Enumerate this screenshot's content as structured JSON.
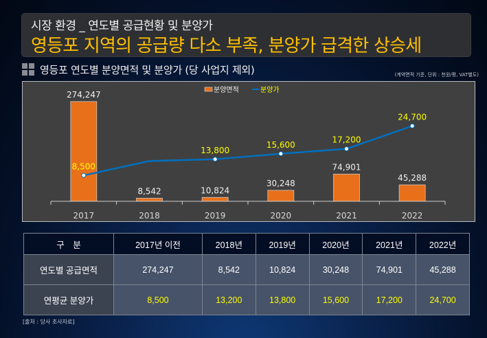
{
  "header": {
    "subtitle": "시장 환경 _ 연도별 공급현황 및 분양가",
    "title": "영등포 지역의 공급량 다소 부족, 분양가 급격한 상승세"
  },
  "section": {
    "icon": "grid-squares-icon",
    "title": "영등포 연도별 분양면적 및 분양가 (당 사업지 제외)",
    "note": "(계약면적 기준, 단위 : 천원/평, VAT별도)"
  },
  "colors": {
    "bar": "#e8701a",
    "line": "#0070c0",
    "title_accent": "#ffc000",
    "price_label": "#ffff00"
  },
  "chart_data": {
    "type": "bar",
    "categories": [
      "2017",
      "2018",
      "2019",
      "2020",
      "2021",
      "2022"
    ],
    "series": [
      {
        "name": "분양면적",
        "type": "bar",
        "values": [
          274247,
          8542,
          10824,
          30248,
          74901,
          45288
        ],
        "labels": [
          "274,247",
          "8,542",
          "10,824",
          "30,248",
          "74,901",
          "45,288"
        ]
      },
      {
        "name": "분양가",
        "type": "line",
        "values": [
          8500,
          13200,
          13800,
          15600,
          17200,
          24700
        ],
        "labels": [
          "8,500",
          "",
          "13,800",
          "15,600",
          "17,200",
          "24,700"
        ],
        "markers": [
          true,
          false,
          true,
          true,
          true,
          true
        ]
      }
    ],
    "legend": {
      "position": "top-center",
      "entries": [
        "분양면적",
        "분양가"
      ]
    },
    "bar_axis_range": [
      0,
      306000
    ],
    "line_axis_range": [
      0,
      36500
    ],
    "grid": false,
    "title": "",
    "xlabel": "",
    "ylabel": ""
  },
  "table": {
    "headers": [
      "구　분",
      "2017년 이전",
      "2018년",
      "2019년",
      "2020년",
      "2021년",
      "2022년"
    ],
    "rows": [
      {
        "label": "연도별 공급면적",
        "values": [
          "274,247",
          "8,542",
          "10,824",
          "30,248",
          "74,901",
          "45,288"
        ]
      },
      {
        "label": "연평균 분양가",
        "values": [
          "8,500",
          "13,200",
          "13,800",
          "15,600",
          "17,200",
          "24,700"
        ]
      }
    ]
  },
  "source": "[출처 : 당사 조사자료]"
}
